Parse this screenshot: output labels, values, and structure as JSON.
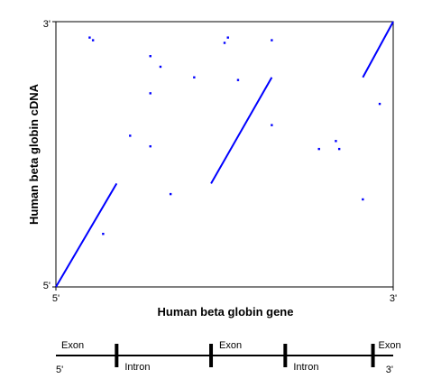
{
  "colors": {
    "series": "#0000ff",
    "axis": "#000000",
    "background": "#ffffff"
  },
  "chart_data": {
    "type": "scatter",
    "xlabel": "Human beta globin gene",
    "ylabel": "Human beta globin cDNA",
    "x_tick_labels": [
      "5'",
      "3'"
    ],
    "y_tick_labels": [
      "5'",
      "3'"
    ],
    "xlim": [
      0,
      1
    ],
    "ylim": [
      0,
      1
    ],
    "grid": false,
    "segments": [
      {
        "x": [
          0.0,
          0.18
        ],
        "y": [
          0.0,
          0.39
        ]
      },
      {
        "x": [
          0.46,
          0.64
        ],
        "y": [
          0.39,
          0.79
        ]
      },
      {
        "x": [
          0.91,
          1.0
        ],
        "y": [
          0.79,
          1.0
        ]
      }
    ],
    "points": [
      {
        "x": 0.1,
        "y": 0.94
      },
      {
        "x": 0.11,
        "y": 0.93
      },
      {
        "x": 0.28,
        "y": 0.87
      },
      {
        "x": 0.31,
        "y": 0.83
      },
      {
        "x": 0.28,
        "y": 0.73
      },
      {
        "x": 0.41,
        "y": 0.79
      },
      {
        "x": 0.5,
        "y": 0.92
      },
      {
        "x": 0.51,
        "y": 0.94
      },
      {
        "x": 0.54,
        "y": 0.78
      },
      {
        "x": 0.64,
        "y": 0.93
      },
      {
        "x": 0.64,
        "y": 0.61
      },
      {
        "x": 0.22,
        "y": 0.57
      },
      {
        "x": 0.28,
        "y": 0.53
      },
      {
        "x": 0.34,
        "y": 0.35
      },
      {
        "x": 0.14,
        "y": 0.2
      },
      {
        "x": 0.78,
        "y": 0.52
      },
      {
        "x": 0.83,
        "y": 0.55
      },
      {
        "x": 0.84,
        "y": 0.52
      },
      {
        "x": 0.91,
        "y": 0.33
      },
      {
        "x": 0.96,
        "y": 0.69
      }
    ]
  },
  "gene_map": {
    "start_label": "5'",
    "end_label": "3'",
    "regions": [
      {
        "label": "Exon",
        "start": 0.0,
        "end": 0.18
      },
      {
        "label": "Intron",
        "start": 0.18,
        "end": 0.46
      },
      {
        "label": "Exon",
        "start": 0.46,
        "end": 0.68
      },
      {
        "label": "Intron",
        "start": 0.68,
        "end": 0.94
      },
      {
        "label": "Exon",
        "start": 0.94,
        "end": 1.0
      }
    ]
  }
}
